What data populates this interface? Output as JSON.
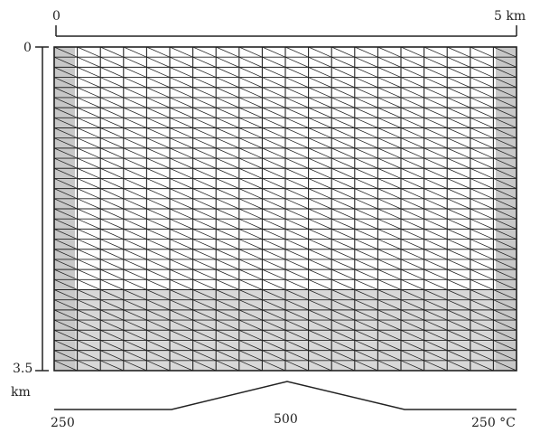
{
  "scale_bar": {
    "start_label": "0",
    "end_label": "5 km"
  },
  "depth_axis": {
    "top_label": "0",
    "bottom_label": "3.5",
    "bottom_unit": "km"
  },
  "temperature_profile": {
    "left_label": "250",
    "middle_label": "500",
    "right_label": "250 °C"
  },
  "mesh": {
    "columns": 20,
    "rows": 32,
    "shaded_rows_from": 24
  },
  "colors": {
    "line": "#222222",
    "shade": "#c8c8c8",
    "background": "#ffffff"
  }
}
